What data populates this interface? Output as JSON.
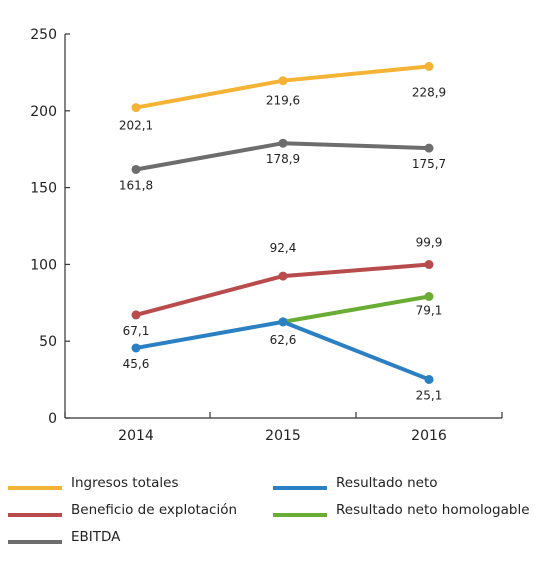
{
  "chart_data": {
    "type": "line",
    "categories": [
      "2014",
      "2015",
      "2016"
    ],
    "ylim": [
      0,
      250
    ],
    "yticks": [
      "0",
      "50",
      "100",
      "150",
      "200",
      "250"
    ],
    "grid": false,
    "legend_position": "bottom",
    "series": [
      {
        "name": "Ingresos totales",
        "color": "#f5b335",
        "values": [
          202.1,
          219.6,
          228.9
        ],
        "labels": [
          "202,1",
          "219,6",
          "228,9"
        ]
      },
      {
        "name": "EBITDA",
        "color": "#6d6d6d",
        "values": [
          161.8,
          178.9,
          175.7
        ],
        "labels": [
          "161,8",
          "178,9",
          "175,7"
        ]
      },
      {
        "name": "Beneficio de explotación",
        "color": "#b84c4c",
        "values": [
          67.1,
          92.4,
          99.9
        ],
        "labels": [
          "67,1",
          "92,4",
          "99,9"
        ]
      },
      {
        "name": "Resultado neto homologable",
        "color": "#6aad35",
        "values": [
          null,
          62.6,
          79.1
        ],
        "labels": [
          null,
          null,
          "79,1"
        ]
      },
      {
        "name": "Resultado neto",
        "color": "#2a80c2",
        "values": [
          45.6,
          62.6,
          25.1
        ],
        "labels": [
          "45,6",
          "62,6",
          "25,1"
        ]
      }
    ],
    "legend": [
      "Ingresos totales",
      "Resultado neto",
      "Beneficio de explotación",
      "Resultado neto homologable",
      "EBITDA"
    ]
  }
}
